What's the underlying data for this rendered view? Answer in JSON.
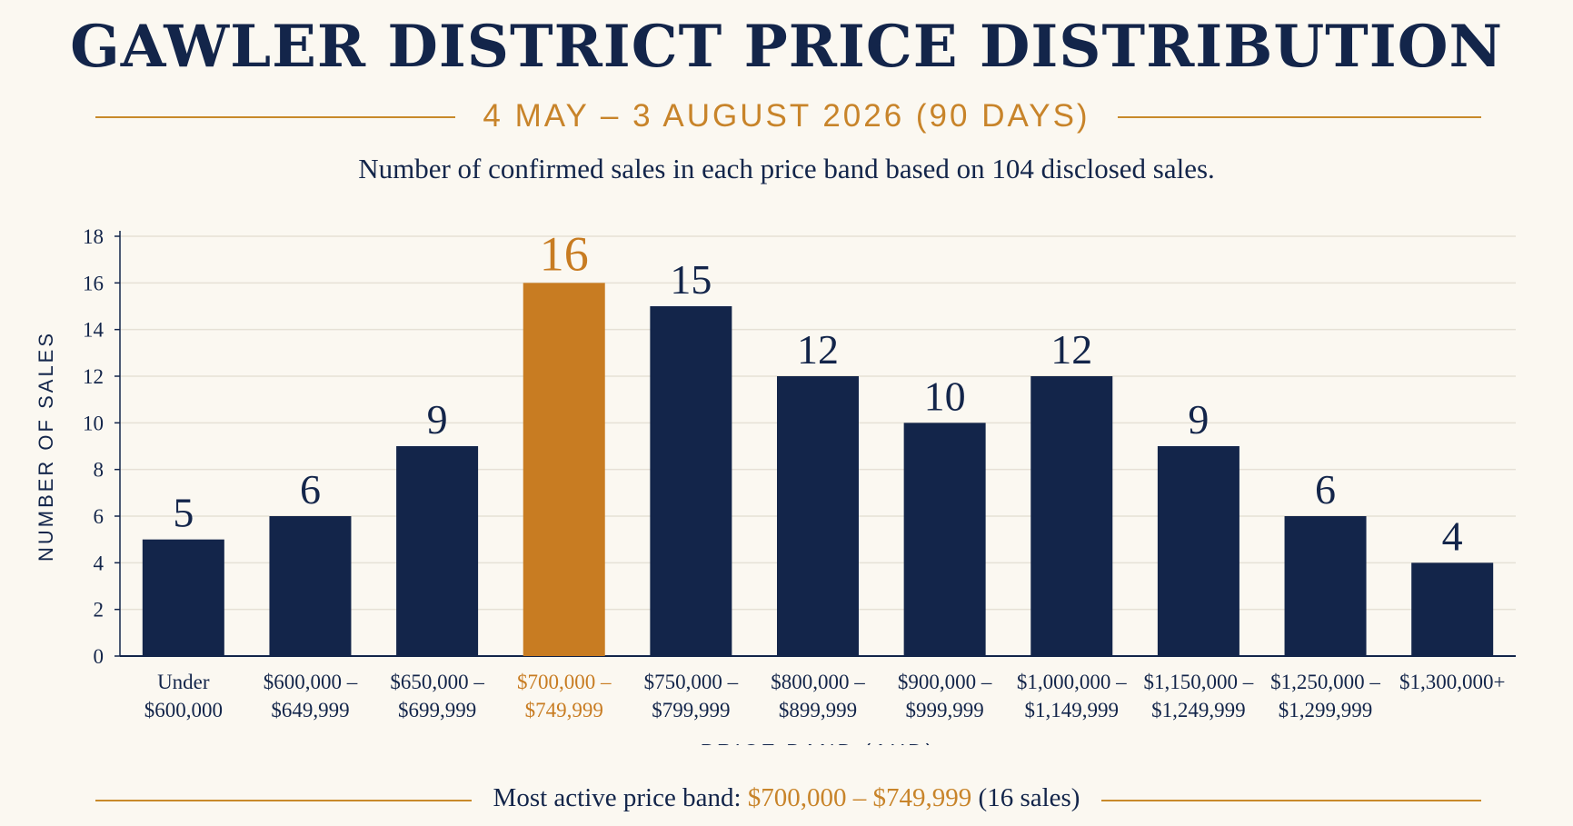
{
  "header": {
    "title": "GAWLER DISTRICT PRICE DISTRIBUTION",
    "subtitle": "4 MAY – 3 AUGUST 2026 (90 DAYS)",
    "description": "Number of confirmed sales in each price band based on 104 disclosed sales."
  },
  "chart_data": {
    "type": "bar",
    "title": "GAWLER DISTRICT PRICE DISTRIBUTION",
    "xlabel": "PRICE BAND (AUD)",
    "ylabel": "NUMBER OF SALES",
    "ylim": [
      0,
      18
    ],
    "yticks": [
      0,
      2,
      4,
      6,
      8,
      10,
      12,
      14,
      16,
      18
    ],
    "grid": true,
    "categories": [
      [
        "Under",
        "$600,000"
      ],
      [
        "$600,000 –",
        "$649,999"
      ],
      [
        "$650,000 –",
        "$699,999"
      ],
      [
        "$700,000 –",
        "$749,999"
      ],
      [
        "$750,000 –",
        "$799,999"
      ],
      [
        "$800,000 –",
        "$899,999"
      ],
      [
        "$900,000 –",
        "$999,999"
      ],
      [
        "$1,000,000 –",
        "$1,149,999"
      ],
      [
        "$1,150,000 –",
        "$1,249,999"
      ],
      [
        "$1,250,000 –",
        "$1,299,999"
      ],
      [
        "$1,300,000+"
      ]
    ],
    "values": [
      5,
      6,
      9,
      16,
      15,
      12,
      10,
      12,
      9,
      6,
      4
    ],
    "highlight_index": 3,
    "colors": {
      "bar": "#13254a",
      "highlight": "#c87c22",
      "grid": "#e6e1d6",
      "axis": "#13254a"
    }
  },
  "footer": {
    "prefix": "Most active price band: ",
    "band": "$700,000 – $749,999",
    "suffix": " (16 sales)"
  }
}
